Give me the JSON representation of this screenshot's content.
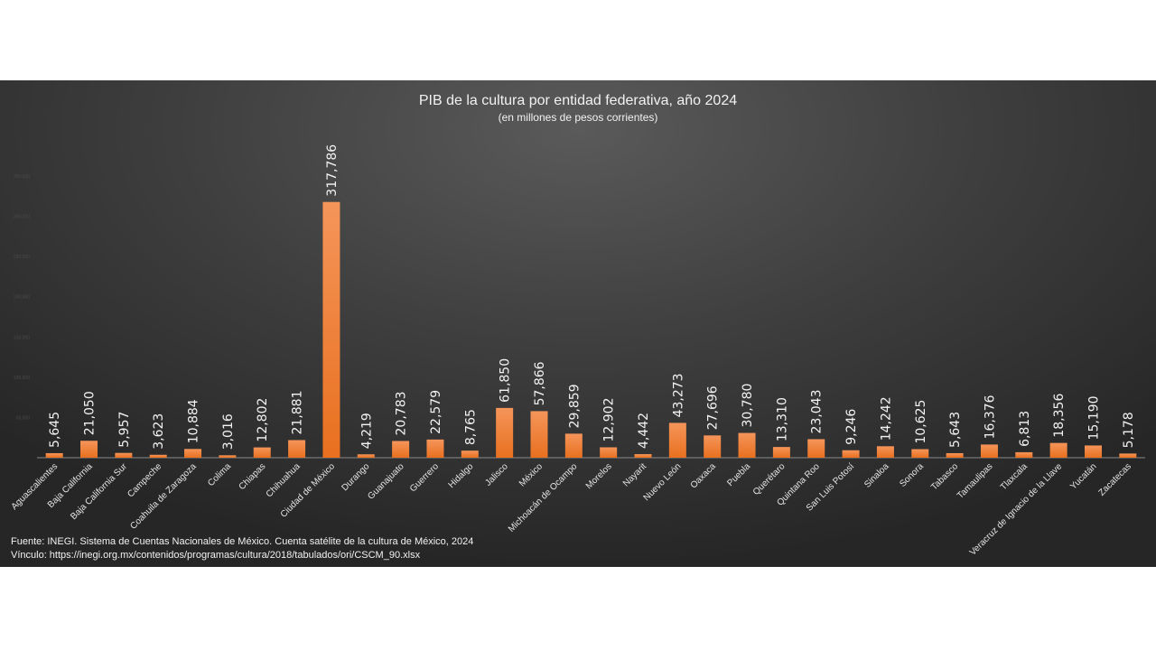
{
  "chart_data": {
    "type": "bar",
    "title": "PIB de la cultura por entidad federativa, año 2024",
    "subtitle": "(en millones de pesos corrientes)",
    "xlabel": "",
    "ylabel": "",
    "ylim": [
      0,
      350000
    ],
    "yticks": [
      "0",
      "50,000",
      "100,000",
      "150,000",
      "200,000",
      "250,000",
      "300,000",
      "350,000"
    ],
    "ytick_values": [
      0,
      50000,
      100000,
      150000,
      200000,
      250000,
      300000,
      350000
    ],
    "grid": false,
    "categories": [
      "Aguascalientes",
      "Baja California",
      "Baja California Sur",
      "Campeche",
      "Coahuila de Zaragoza",
      "Colima",
      "Chiapas",
      "Chihuahua",
      "Ciudad de México",
      "Durango",
      "Guanajuato",
      "Guerrero",
      "Hidalgo",
      "Jalisco",
      "México",
      "Michoacán de Ocampo",
      "Morelos",
      "Nayarit",
      "Nuevo León",
      "Oaxaca",
      "Puebla",
      "Querétaro",
      "Quintana Roo",
      "San Luis Potosí",
      "Sinaloa",
      "Sonora",
      "Tabasco",
      "Tamaulipas",
      "Tlaxcala",
      "Veracruz de Ignacio de la Llave",
      "Yucatán",
      "Zacatecas"
    ],
    "values": [
      5645,
      21050,
      5957,
      3623,
      10884,
      3016,
      12802,
      21881,
      317786,
      4219,
      20783,
      22579,
      8765,
      61850,
      57866,
      29859,
      12902,
      4442,
      43273,
      27696,
      30780,
      13310,
      23043,
      9246,
      14242,
      10625,
      5643,
      16376,
      6813,
      18356,
      15190,
      5178
    ],
    "value_labels": [
      "5,645",
      "21,050",
      "5,957",
      "3,623",
      "10,884",
      "3,016",
      "12,802",
      "21,881",
      "317,786",
      "4,219",
      "20,783",
      "22,579",
      "8,765",
      "61,850",
      "57,866",
      "29,859",
      "12,902",
      "4,442",
      "43,273",
      "27,696",
      "30,780",
      "13,310",
      "23,043",
      "9,246",
      "14,242",
      "10,625",
      "5,643",
      "16,376",
      "6,813",
      "18,356",
      "15,190",
      "5,178"
    ],
    "bar_color": "#f07b2e"
  },
  "footer": {
    "source": "Fuente: INEGI. Sistema de Cuentas Nacionales de México. Cuenta satélite de la cultura de México, 2024",
    "link": "Vínculo: https://inegi.org.mx/contenidos/programas/cultura/2018/tabulados/ori/CSCM_90.xlsx"
  }
}
